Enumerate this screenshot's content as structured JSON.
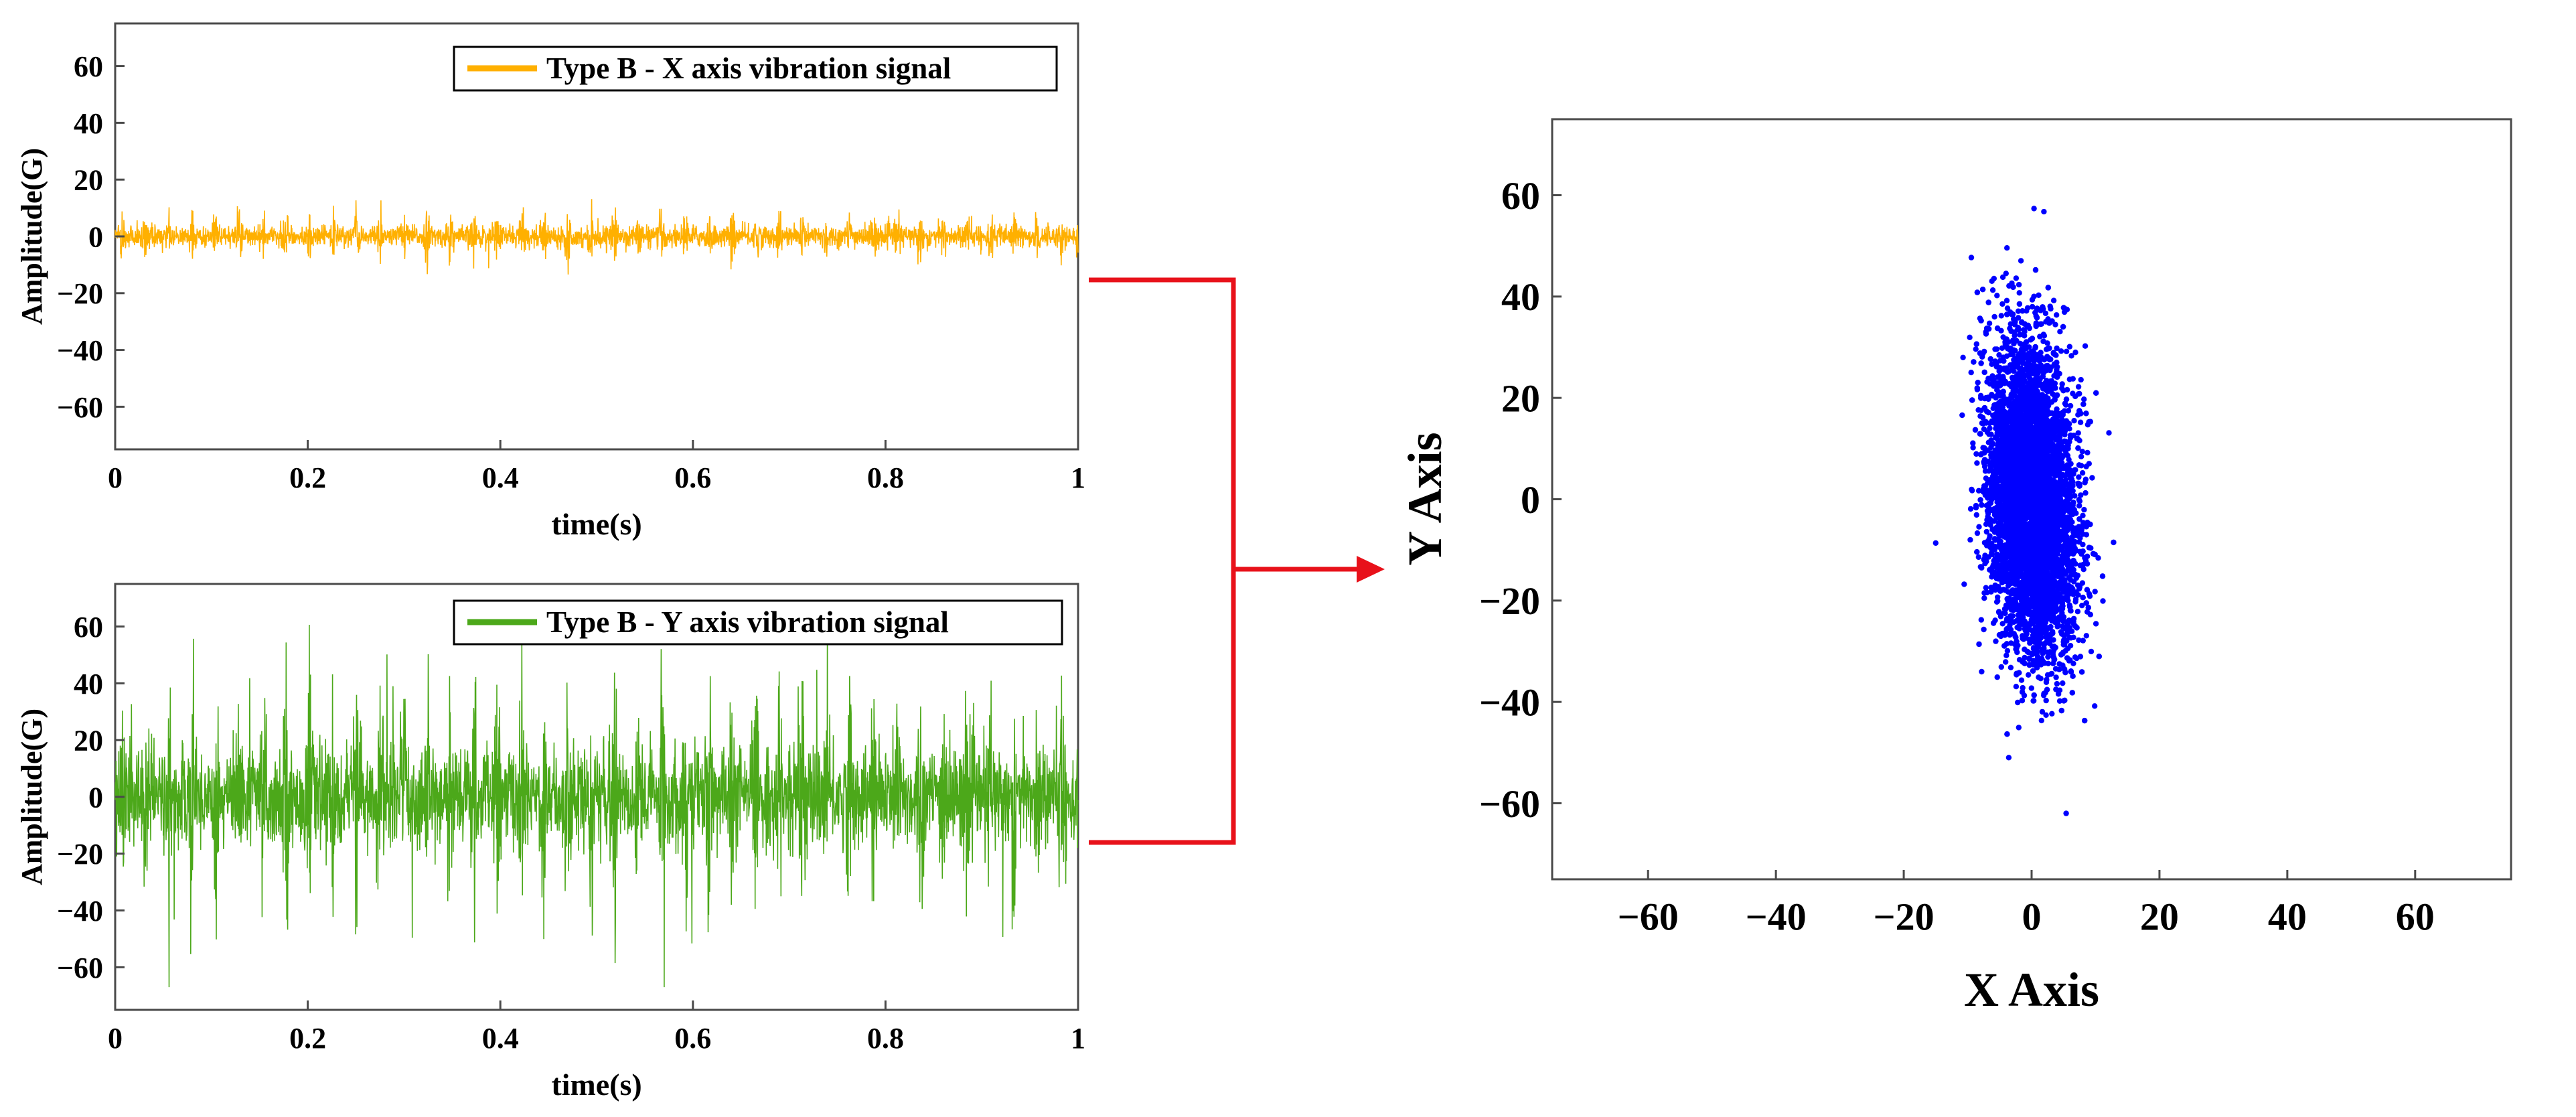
{
  "chart_data": [
    {
      "type": "line",
      "series": [
        {
          "name": "Type B - X axis vibration signal",
          "color": "#FFB000",
          "amplitude_envelope": 12
        }
      ],
      "xlabel": "time(s)",
      "ylabel": "Amplitude(G)",
      "xlim": [
        0,
        1
      ],
      "ylim": [
        -75,
        75
      ],
      "xticks": [
        "0",
        "0.2",
        "0.4",
        "0.6",
        "0.8",
        "1"
      ],
      "yticks": [
        "60",
        "40",
        "20",
        "0",
        "−20",
        "−40",
        "−60"
      ],
      "legend": "top-right",
      "grid": false
    },
    {
      "type": "line",
      "series": [
        {
          "name": "Type B - Y axis vibration signal",
          "color": "#4CA81A",
          "amplitude_envelope": 60
        }
      ],
      "xlabel": "time(s)",
      "ylabel": "Amplitude(G)",
      "xlim": [
        0,
        1
      ],
      "ylim": [
        -75,
        75
      ],
      "xticks": [
        "0",
        "0.2",
        "0.4",
        "0.6",
        "0.8",
        "1"
      ],
      "yticks": [
        "60",
        "40",
        "20",
        "0",
        "−20",
        "−40",
        "−60"
      ],
      "legend": "top-right",
      "grid": false
    },
    {
      "type": "scatter",
      "series": [
        {
          "color": "#0000FF",
          "x_range": [
            -15,
            15
          ],
          "y_range": [
            -62,
            59
          ],
          "center": [
            0,
            0
          ]
        }
      ],
      "xlabel": "X Axis",
      "ylabel": "Y Axis",
      "xlim": [
        -75,
        75
      ],
      "ylim": [
        -75,
        75
      ],
      "xticks": [
        "−60",
        "−40",
        "−20",
        "0",
        "20",
        "40",
        "60"
      ],
      "yticks": [
        "60",
        "40",
        "20",
        "0",
        "−20",
        "−40",
        "−60"
      ],
      "grid": false
    }
  ],
  "connector_color": "#E8111A"
}
